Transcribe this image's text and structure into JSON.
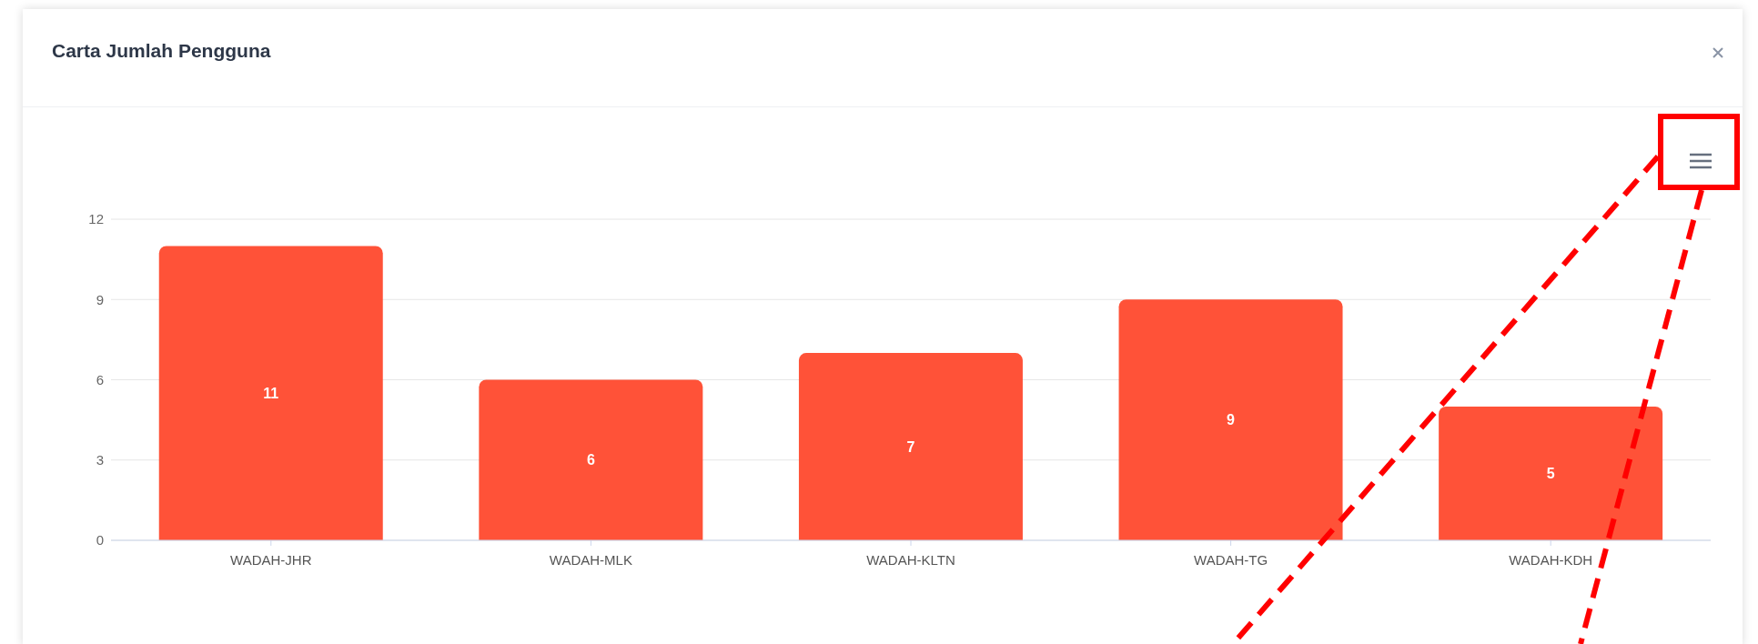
{
  "chart_data": {
    "type": "bar",
    "title": "Carta Jumlah Pengguna",
    "categories": [
      "WADAH-JHR",
      "WADAH-MLK",
      "WADAH-KLTN",
      "WADAH-TG",
      "WADAH-KDH"
    ],
    "values": [
      11,
      6,
      7,
      9,
      5
    ],
    "color": "#ff5238",
    "ylim": [
      0,
      12
    ],
    "yticks": [
      0,
      3,
      6,
      9,
      12
    ],
    "grid": "y",
    "data_labels": true
  }
}
